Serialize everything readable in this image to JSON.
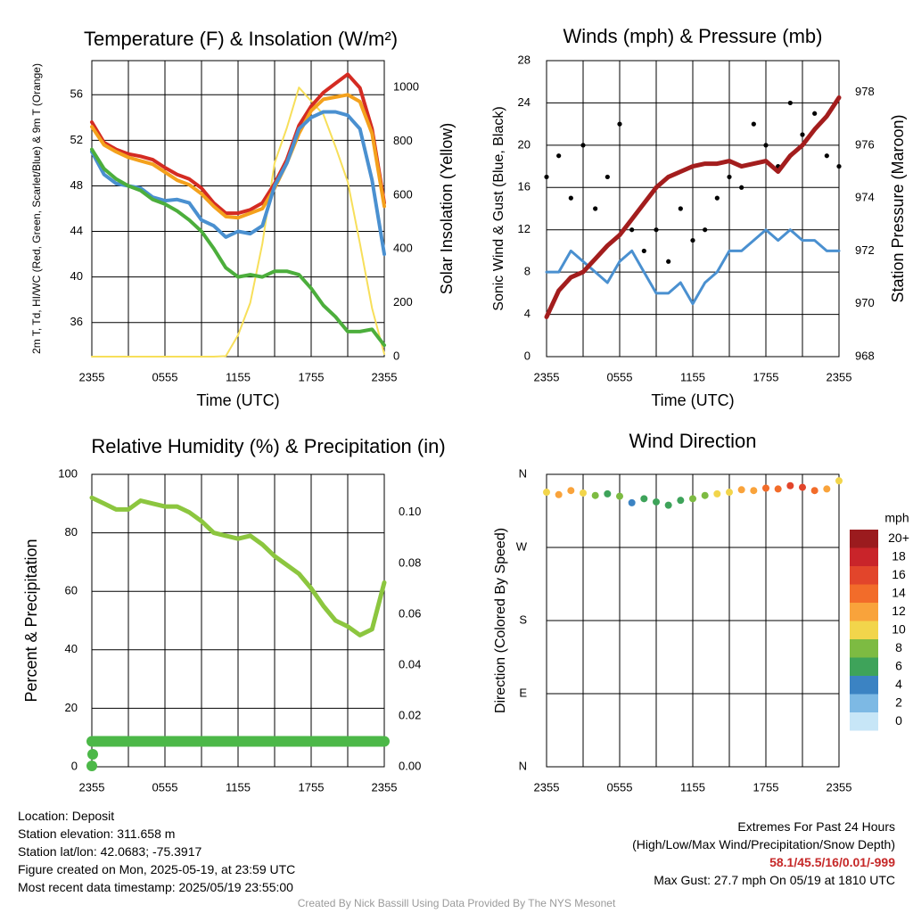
{
  "chart_data": [
    {
      "type": "line",
      "title": "Temperature (F) & Insolation (W/m²)",
      "xlabel": "Time (UTC)",
      "ylabel_left": "2m T, Td, HI/WC (Red, Green, Scarlet/Blue) & 9m T (Orange)",
      "ylabel_right": "Solar Insolation (Yellow)",
      "x_ticks": [
        "2355",
        "0555",
        "1155",
        "1755",
        "2355"
      ],
      "y_ticks_left": [
        "36",
        "40",
        "44",
        "48",
        "52",
        "56"
      ],
      "y_ticks_right": [
        "0",
        "200",
        "400",
        "600",
        "800",
        "1000"
      ],
      "ylim_left": [
        33,
        59
      ],
      "ylim_right": [
        0,
        1100
      ],
      "x": [
        0,
        1,
        2,
        3,
        4,
        5,
        6,
        7,
        8,
        9,
        10,
        11,
        12,
        13,
        14,
        15,
        16,
        17,
        18,
        19,
        20,
        21,
        22,
        23,
        24
      ],
      "series": [
        {
          "color": "#d42b22",
          "values": [
            53.6,
            51.8,
            51.2,
            50.8,
            50.6,
            50.3,
            49.6,
            49.0,
            48.6,
            47.8,
            46.5,
            45.6,
            45.6,
            45.9,
            46.5,
            48.2,
            50.3,
            53.3,
            55.0,
            56.2,
            57.0,
            57.8,
            56.6,
            53.0,
            46.5
          ]
        },
        {
          "color": "#f4a11c",
          "values": [
            53.2,
            51.6,
            51.0,
            50.5,
            50.2,
            49.9,
            49.2,
            48.5,
            48.1,
            47.3,
            46.2,
            45.3,
            45.2,
            45.6,
            46.0,
            47.8,
            50.0,
            52.6,
            54.6,
            55.6,
            55.8,
            56.0,
            55.4,
            52.6,
            46.2
          ]
        },
        {
          "color": "#4a90d0",
          "values": [
            51.0,
            49.0,
            48.2,
            48.0,
            47.8,
            47.0,
            46.7,
            46.8,
            46.5,
            45.0,
            44.5,
            43.5,
            44.0,
            43.8,
            44.5,
            48.0,
            50.0,
            53.0,
            54.0,
            54.5,
            54.5,
            54.2,
            53.0,
            48.5,
            42.0
          ]
        },
        {
          "color": "#4cae3c",
          "values": [
            51.2,
            49.5,
            48.6,
            48.0,
            47.6,
            46.8,
            46.4,
            45.8,
            45.0,
            44.0,
            42.5,
            40.8,
            40.0,
            40.2,
            40.0,
            40.5,
            40.5,
            40.2,
            39.0,
            37.5,
            36.5,
            35.2,
            35.2,
            35.4,
            34.0
          ]
        }
      ],
      "insolation": {
        "color": "#f7df5a",
        "values": [
          0,
          0,
          0,
          0,
          0,
          0,
          0,
          0,
          0,
          0,
          0,
          2,
          80,
          200,
          420,
          720,
          850,
          1000,
          950,
          900,
          780,
          650,
          420,
          180,
          10
        ]
      }
    },
    {
      "type": "scatter",
      "title": "Winds (mph) & Pressure (mb)",
      "xlabel": "Time (UTC)",
      "ylabel_left": "Sonic Wind & Gust (Blue, Black)",
      "ylabel_right": "Station Pressure (Maroon)",
      "x_ticks": [
        "2355",
        "0555",
        "1155",
        "1755",
        "2355"
      ],
      "y_ticks_left": [
        "0",
        "4",
        "8",
        "12",
        "16",
        "20",
        "24",
        "28"
      ],
      "y_ticks_right": [
        "968",
        "970",
        "972",
        "974",
        "976",
        "978"
      ],
      "ylim_left": [
        0,
        28
      ],
      "ylim_right": [
        968,
        979.2
      ],
      "x": [
        0,
        1,
        2,
        3,
        4,
        5,
        6,
        7,
        8,
        9,
        10,
        11,
        12,
        13,
        14,
        15,
        16,
        17,
        18,
        19,
        20,
        21,
        22,
        23,
        24
      ],
      "wind": {
        "color": "#4a90d0",
        "values": [
          8,
          8,
          10,
          9,
          8,
          7,
          9,
          10,
          8,
          6,
          6,
          7,
          5,
          7,
          8,
          10,
          10,
          11,
          12,
          11,
          12,
          11,
          11,
          10,
          10
        ]
      },
      "gusts": {
        "color": "#000000",
        "values": [
          17,
          19,
          15,
          20,
          14,
          17,
          22,
          12,
          10,
          12,
          9,
          14,
          11,
          12,
          15,
          17,
          16,
          22,
          20,
          18,
          24,
          21,
          23,
          19,
          18
        ]
      },
      "pressure": {
        "color": "#a31d1d",
        "values": [
          969.5,
          970.5,
          971.0,
          971.2,
          971.7,
          972.2,
          972.6,
          973.2,
          973.8,
          974.4,
          974.8,
          975.0,
          975.2,
          975.3,
          975.3,
          975.4,
          975.2,
          975.3,
          975.4,
          975.0,
          975.6,
          976.0,
          976.6,
          977.1,
          977.8
        ]
      }
    },
    {
      "type": "line",
      "title": "Relative Humidity (%) & Precipitation (in)",
      "ylabel_left": "Percent & Precipitation",
      "x_ticks": [
        "2355",
        "0555",
        "1155",
        "1755",
        "2355"
      ],
      "y_ticks_left": [
        "0",
        "20",
        "40",
        "60",
        "80",
        "100"
      ],
      "y_ticks_right": [
        "0.00",
        "0.02",
        "0.04",
        "0.06",
        "0.08",
        "0.10"
      ],
      "ylim_left": [
        0,
        100
      ],
      "ylim_right": [
        0,
        0.115
      ],
      "x": [
        0,
        1,
        2,
        3,
        4,
        5,
        6,
        7,
        8,
        9,
        10,
        11,
        12,
        13,
        14,
        15,
        16,
        17,
        18,
        19,
        20,
        21,
        22,
        23,
        24
      ],
      "humidity": {
        "color": "#8cc63f",
        "values": [
          92,
          90,
          88,
          88,
          91,
          90,
          89,
          89,
          87,
          84,
          80,
          79,
          78,
          79,
          76,
          72,
          69,
          66,
          61,
          55,
          50,
          48,
          45,
          47,
          63
        ]
      },
      "precip": {
        "color": "#4cb848",
        "values": [
          0.01,
          0.01,
          0.01,
          0.01,
          0.01,
          0.01,
          0.01,
          0.01,
          0.01,
          0.01,
          0.01,
          0.01,
          0.01,
          0.01,
          0.01,
          0.01,
          0.01,
          0.01,
          0.01,
          0.01,
          0.01,
          0.01,
          0.01,
          0.01,
          0.01
        ]
      }
    },
    {
      "type": "scatter",
      "title": "Wind Direction",
      "ylabel": "Direction (Colored By Speed)",
      "x_ticks": [
        "2355",
        "0555",
        "1155",
        "1755",
        "2355"
      ],
      "y_ticks": [
        "N",
        "W",
        "S",
        "E",
        "N"
      ],
      "ylim": [
        0,
        360
      ],
      "x": [
        0,
        1,
        2,
        3,
        4,
        5,
        6,
        7,
        8,
        9,
        10,
        11,
        12,
        13,
        14,
        15,
        16,
        17,
        18,
        19,
        20,
        21,
        22,
        23,
        24
      ],
      "direction": [
        338,
        335,
        340,
        337,
        334,
        336,
        333,
        325,
        330,
        326,
        322,
        328,
        330,
        334,
        336,
        338,
        341,
        340,
        343,
        342,
        346,
        344,
        340,
        342,
        352
      ],
      "speed": [
        10,
        11,
        12,
        9,
        8,
        6,
        7,
        4,
        5,
        6,
        5,
        6,
        7,
        8,
        9,
        10,
        12,
        11,
        14,
        13,
        15,
        16,
        13,
        12,
        10
      ],
      "legend": {
        "unit": "mph",
        "labels": [
          "20+",
          "18",
          "16",
          "14",
          "12",
          "10",
          "8",
          "6",
          "4",
          "2",
          "0"
        ],
        "colors": [
          "#9b1b1e",
          "#c9242a",
          "#e2452b",
          "#f26c2a",
          "#f9a33b",
          "#f2d54b",
          "#7dbb42",
          "#3ea35a",
          "#3b83c3",
          "#7db9e4",
          "#c7e6f7"
        ]
      }
    }
  ],
  "station_info": {
    "location": "Location: Deposit",
    "elevation": "Station elevation: 311.658 m",
    "latlon": "Station lat/lon: 42.0683; -75.3917",
    "created": "Figure created on Mon, 2025-05-19, at 23:59 UTC",
    "recent": "Most recent data timestamp: 2025/05/19 23:55:00"
  },
  "extremes": {
    "title": "Extremes For Past 24 Hours",
    "subtitle": "(High/Low/Max Wind/Precipitation/Snow Depth)",
    "values": "58.1/45.5/16/0.01/-999",
    "max_gust": "Max Gust: 27.7 mph On 05/19 at 1810 UTC"
  },
  "credit": "Created By Nick Bassill Using Data Provided By The NYS Mesonet"
}
